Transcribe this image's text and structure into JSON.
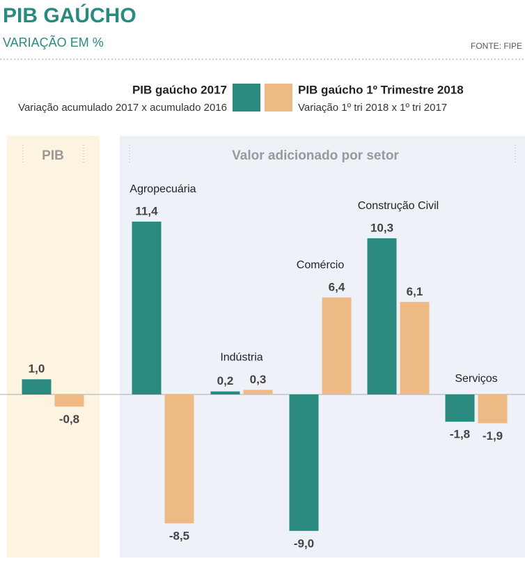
{
  "chart_data": {
    "type": "bar",
    "title": "PIB GAÚCHO",
    "subtitle": "VARIAÇÃO EM %",
    "source": "FONTE: FIPE",
    "panels": [
      "PIB",
      "Valor adicionado por setor"
    ],
    "categories": [
      null,
      "Agropecuária",
      "Indústria",
      "Comércio",
      "Construção Civil",
      "Serviços"
    ],
    "series": [
      {
        "name": "PIB gaúcho 2017",
        "description": "Variação acumulado 2017 x acumulado 2016",
        "color": "#2a8a80",
        "values": [
          1.0,
          11.4,
          0.2,
          -9.0,
          10.3,
          -1.8
        ],
        "value_labels": [
          "1,0",
          "11,4",
          "0,2",
          "-9,0",
          "10,3",
          "-1,8"
        ]
      },
      {
        "name": "PIB gaúcho 1º Trimestre 2018",
        "description": "Variação 1º tri 2018 x 1º tri 2017",
        "color": "#edb985",
        "values": [
          -0.8,
          -8.5,
          0.3,
          6.4,
          6.1,
          -1.9
        ],
        "value_labels": [
          "-0,8",
          "-8,5",
          "0,3",
          "6,4",
          "6,1",
          "-1,9"
        ]
      }
    ]
  }
}
